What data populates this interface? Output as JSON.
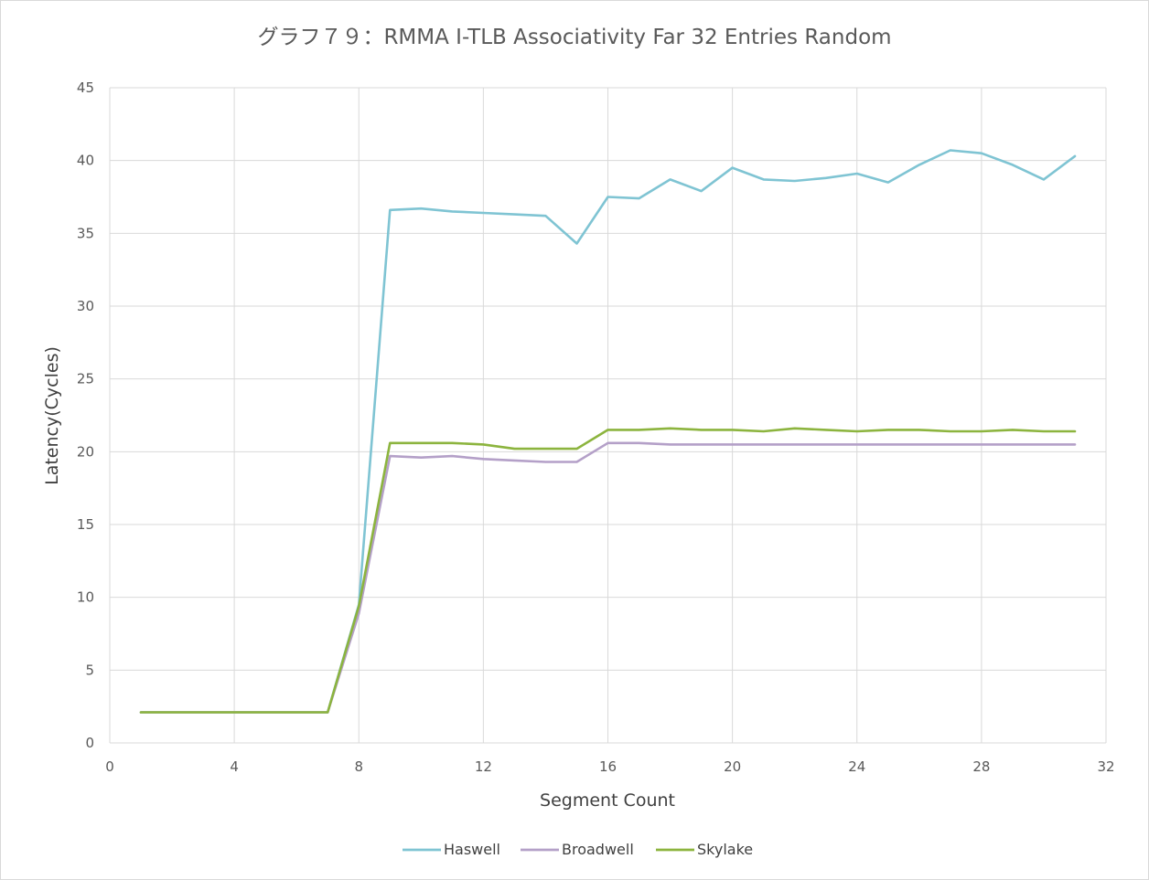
{
  "chart_data": {
    "type": "line",
    "title": "グラフ７９：RMMA I-TLB Associativity Far 32 Entries Random",
    "xlabel": "Segment Count",
    "ylabel": "Latency(Cycles)",
    "xlim": [
      0,
      32
    ],
    "ylim": [
      0,
      45
    ],
    "x_ticks": [
      0,
      4,
      8,
      12,
      16,
      20,
      24,
      28,
      32
    ],
    "y_ticks": [
      0,
      5,
      10,
      15,
      20,
      25,
      30,
      35,
      40,
      45
    ],
    "grid": true,
    "legend_position": "bottom",
    "x": [
      1,
      2,
      3,
      4,
      5,
      6,
      7,
      8,
      9,
      10,
      11,
      12,
      13,
      14,
      15,
      16,
      17,
      18,
      19,
      20,
      21,
      22,
      23,
      24,
      25,
      26,
      27,
      28,
      29,
      30,
      31
    ],
    "series": [
      {
        "name": "Haswell",
        "color": "#7fc4d3",
        "values": [
          2.1,
          2.1,
          2.1,
          2.1,
          2.1,
          2.1,
          2.1,
          9.5,
          36.6,
          36.7,
          36.5,
          36.4,
          36.3,
          36.2,
          34.3,
          37.5,
          37.4,
          38.7,
          37.9,
          39.5,
          38.7,
          38.6,
          38.8,
          39.1,
          38.5,
          39.7,
          40.7,
          40.5,
          39.7,
          38.7,
          40.3
        ]
      },
      {
        "name": "Broadwell",
        "color": "#b4a0c8",
        "values": [
          2.1,
          2.1,
          2.1,
          2.1,
          2.1,
          2.1,
          2.1,
          8.9,
          19.7,
          19.6,
          19.7,
          19.5,
          19.4,
          19.3,
          19.3,
          20.6,
          20.6,
          20.5,
          20.5,
          20.5,
          20.5,
          20.5,
          20.5,
          20.5,
          20.5,
          20.5,
          20.5,
          20.5,
          20.5,
          20.5,
          20.5
        ]
      },
      {
        "name": "Skylake",
        "color": "#8cb43e",
        "values": [
          2.1,
          2.1,
          2.1,
          2.1,
          2.1,
          2.1,
          2.1,
          9.4,
          20.6,
          20.6,
          20.6,
          20.5,
          20.2,
          20.2,
          20.2,
          21.5,
          21.5,
          21.6,
          21.5,
          21.5,
          21.4,
          21.6,
          21.5,
          21.4,
          21.5,
          21.5,
          21.4,
          21.4,
          21.5,
          21.4,
          21.4
        ]
      }
    ]
  }
}
